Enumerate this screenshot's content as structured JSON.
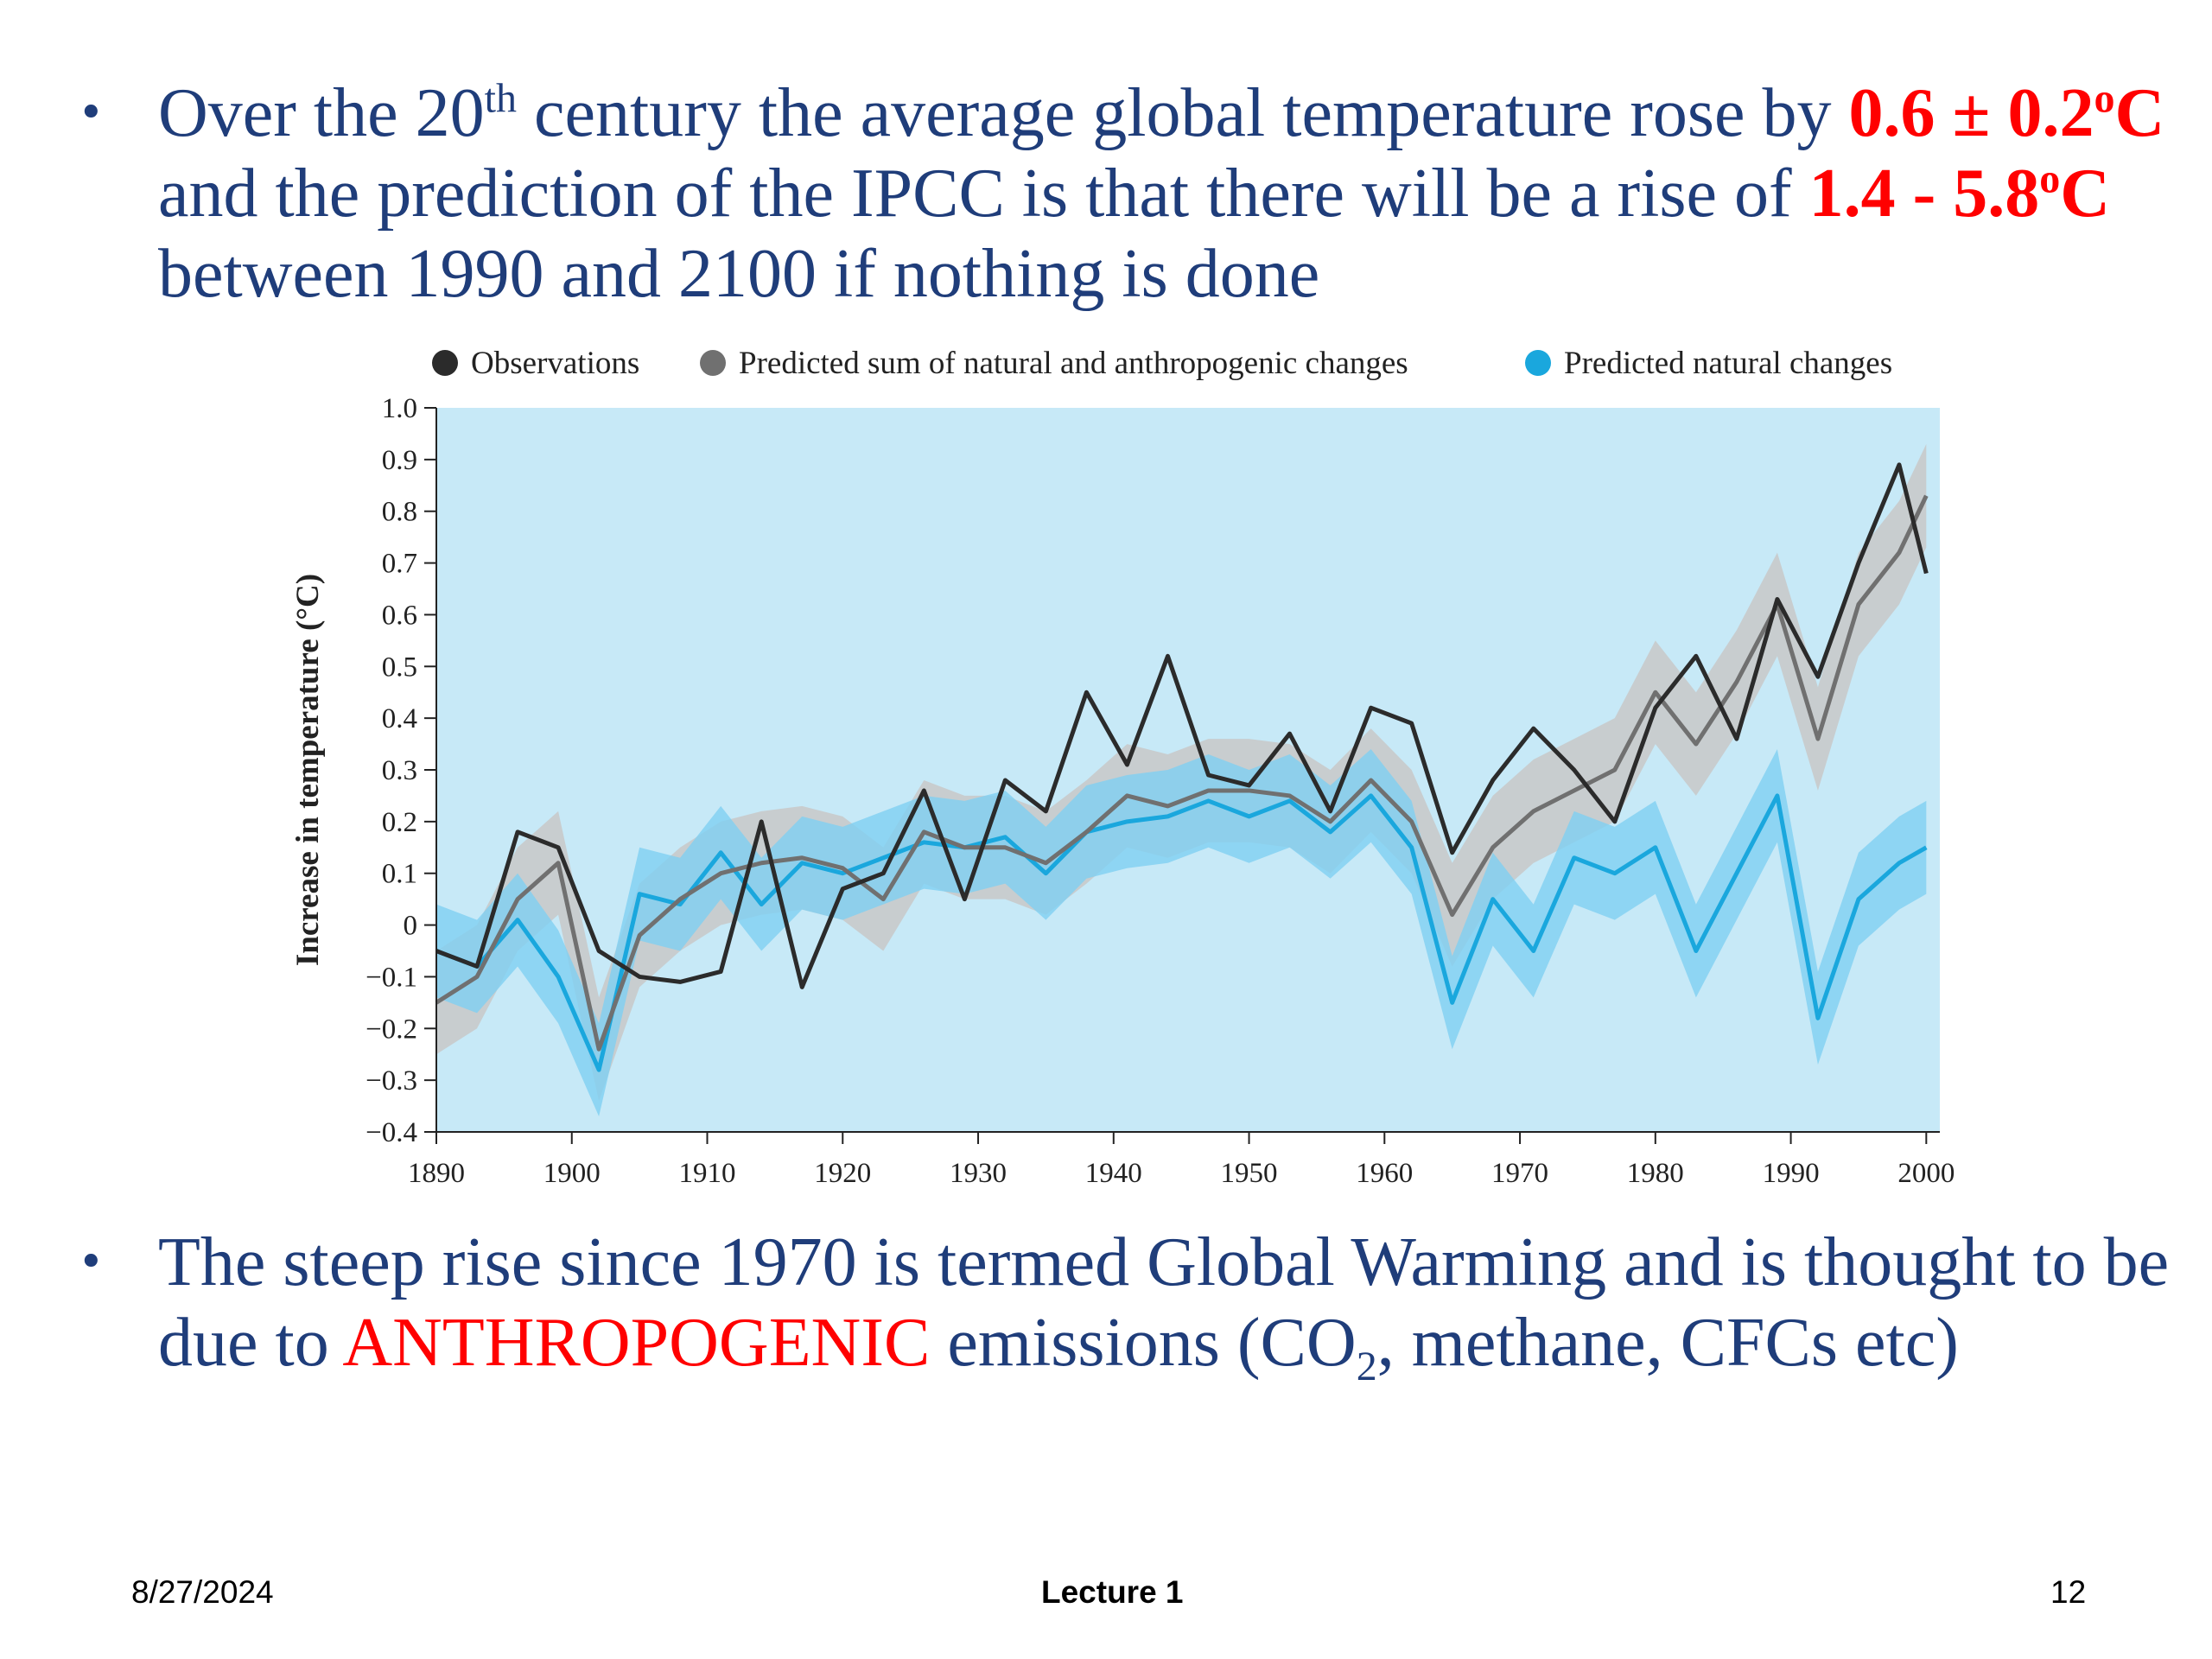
{
  "slide": {
    "bullet1": {
      "p1": "Over the 20",
      "sup1": "th",
      "p2": " century the average global temperature rose by ",
      "r1": "0.6 ± 0.2",
      "r1sup": "o",
      "r1end": "C",
      "p3": " and the prediction of the IPCC is that there will be a rise of ",
      "r2": "1.4 - 5.8",
      "r2sup": "o",
      "r2end": "C",
      "p4": " between 1990 and 2100 if nothing is done"
    },
    "bullet2": {
      "p1": "The steep rise since 1970 is termed Global Warming and is thought to be due to ",
      "r1": "ANTHROPOGENIC",
      "p2": " emissions (CO",
      "sub1": "2",
      "p3": ", methane, CFCs etc)"
    },
    "footer": {
      "date": "8/27/2024",
      "lecture": "Lecture 1",
      "page": "12"
    }
  },
  "colors": {
    "text_blue": "#1f3d7a",
    "highlight_red": "#ff0000",
    "plot_bg": "#c7e9f7",
    "observations": "#2b2b2b",
    "combined_line": "#707070",
    "combined_band": "#c8c8c8",
    "natural_line": "#1aa7dd",
    "natural_band": "#7fd0f1"
  },
  "chart_data": {
    "type": "line",
    "title": "",
    "xlabel": "",
    "ylabel": "Increase in temperature (°C)",
    "xlim": [
      1890,
      2001
    ],
    "ylim": [
      -0.4,
      1.0
    ],
    "xticks": [
      1890,
      1900,
      1910,
      1920,
      1930,
      1940,
      1950,
      1960,
      1970,
      1980,
      1990,
      2000
    ],
    "yticks": [
      "1.0",
      "0.9",
      "0.8",
      "0.7",
      "0.6",
      "0.5",
      "0.4",
      "0.3",
      "0.2",
      "0.1",
      "0",
      "−0.1",
      "−0.2",
      "−0.3",
      "−0.4"
    ],
    "ytick_values": [
      1.0,
      0.9,
      0.8,
      0.7,
      0.6,
      0.5,
      0.4,
      0.3,
      0.2,
      0.1,
      0,
      -0.1,
      -0.2,
      -0.3,
      -0.4
    ],
    "legend_position": "top",
    "x": [
      1890,
      1893,
      1896,
      1899,
      1902,
      1905,
      1908,
      1911,
      1914,
      1917,
      1920,
      1923,
      1926,
      1929,
      1932,
      1935,
      1938,
      1941,
      1944,
      1947,
      1950,
      1953,
      1956,
      1959,
      1962,
      1965,
      1968,
      1971,
      1974,
      1977,
      1980,
      1983,
      1986,
      1989,
      1992,
      1995,
      1998,
      2000
    ],
    "series": [
      {
        "name": "Observations",
        "values": [
          -0.05,
          -0.08,
          0.18,
          0.15,
          -0.05,
          -0.1,
          -0.11,
          -0.09,
          0.2,
          -0.12,
          0.07,
          0.1,
          0.26,
          0.05,
          0.28,
          0.22,
          0.45,
          0.31,
          0.52,
          0.29,
          0.27,
          0.37,
          0.22,
          0.42,
          0.39,
          0.14,
          0.28,
          0.38,
          0.3,
          0.2,
          0.42,
          0.52,
          0.36,
          0.63,
          0.48,
          0.7,
          0.89,
          0.68
        ]
      },
      {
        "name": "Predicted sum of natural and anthropogenic changes",
        "values": [
          -0.15,
          -0.1,
          0.05,
          0.12,
          -0.24,
          -0.02,
          0.05,
          0.1,
          0.12,
          0.13,
          0.11,
          0.05,
          0.18,
          0.15,
          0.15,
          0.12,
          0.18,
          0.25,
          0.23,
          0.26,
          0.26,
          0.25,
          0.2,
          0.28,
          0.2,
          0.02,
          0.15,
          0.22,
          0.26,
          0.3,
          0.45,
          0.35,
          0.47,
          0.62,
          0.36,
          0.62,
          0.72,
          0.83
        ],
        "band_halfwidth": 0.1
      },
      {
        "name": "Predicted natural changes",
        "values": [
          -0.05,
          -0.08,
          0.01,
          -0.1,
          -0.28,
          0.06,
          0.04,
          0.14,
          0.04,
          0.12,
          0.1,
          0.13,
          0.16,
          0.15,
          0.17,
          0.1,
          0.18,
          0.2,
          0.21,
          0.24,
          0.21,
          0.24,
          0.18,
          0.25,
          0.15,
          -0.15,
          0.05,
          -0.05,
          0.13,
          0.1,
          0.15,
          -0.05,
          0.1,
          0.25,
          -0.18,
          0.05,
          0.12,
          0.15
        ],
        "band_halfwidth": 0.09
      }
    ]
  }
}
